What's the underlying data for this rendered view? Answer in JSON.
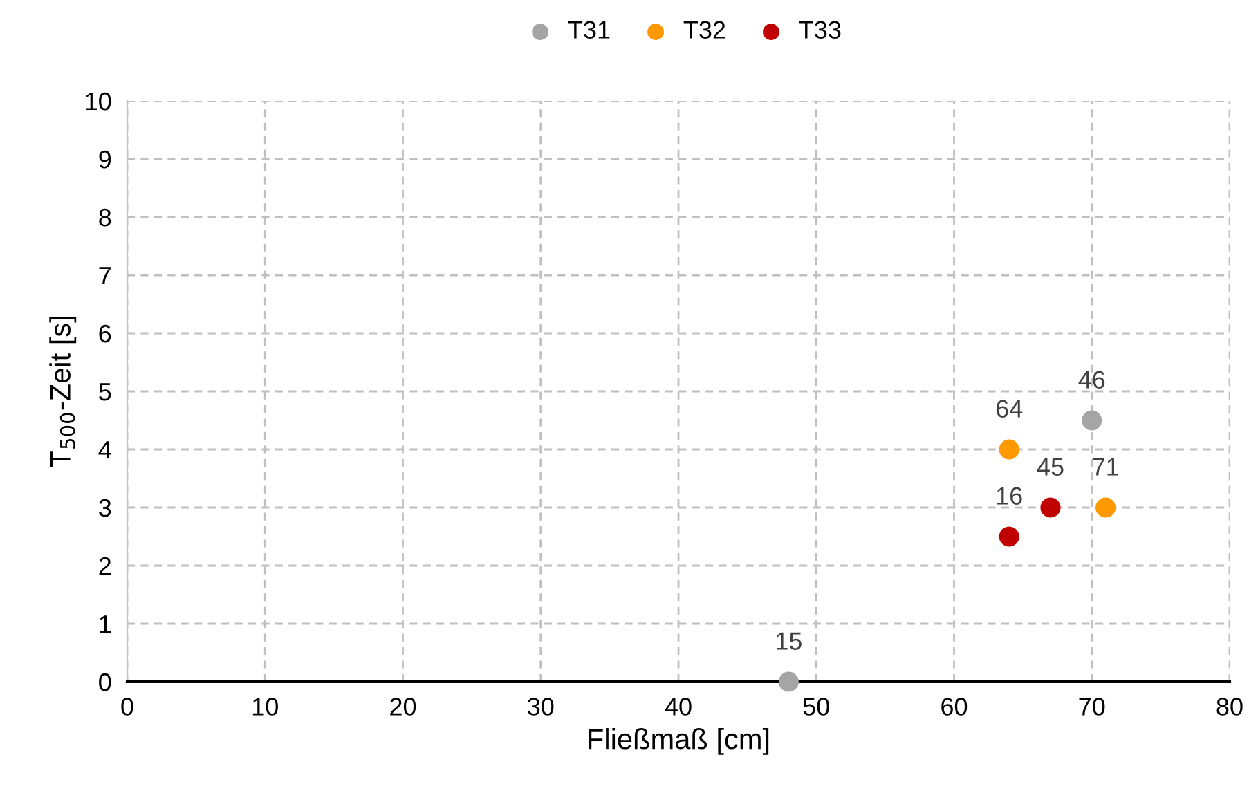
{
  "chart_data": {
    "type": "scatter",
    "xlabel": "Fließmaß [cm]",
    "ylabel": "T$_{500}$-Zeit [s]",
    "series": [
      {
        "name": "T31",
        "color": "#a5a5a5",
        "x": [
          48,
          70
        ],
        "values": [
          0,
          4.5
        ]
      },
      {
        "name": "T32",
        "color": "#ff9900",
        "x": [
          64,
          71
        ],
        "values": [
          4,
          3
        ]
      },
      {
        "name": "T33",
        "color": "#c00000",
        "x": [
          64,
          67
        ],
        "values": [
          2.5,
          3
        ]
      }
    ],
    "annotations": [
      {
        "text": "15",
        "x": 48,
        "y": 0
      },
      {
        "text": "46",
        "x": 70,
        "y": 4.5
      },
      {
        "text": "64",
        "x": 64,
        "y": 4
      },
      {
        "text": "71",
        "x": 71,
        "y": 3
      },
      {
        "text": "16",
        "x": 64,
        "y": 2.5
      },
      {
        "text": "45",
        "x": 67,
        "y": 3
      }
    ],
    "xlim": [
      0,
      80
    ],
    "xticks": [
      0,
      10,
      20,
      30,
      40,
      50,
      60,
      70,
      80
    ],
    "ylim": [
      0,
      10
    ],
    "yticks": [
      0,
      1,
      2,
      3,
      4,
      5,
      6,
      7,
      8,
      9,
      10
    ],
    "grid": true,
    "legend": "top",
    "marker": "circle"
  }
}
